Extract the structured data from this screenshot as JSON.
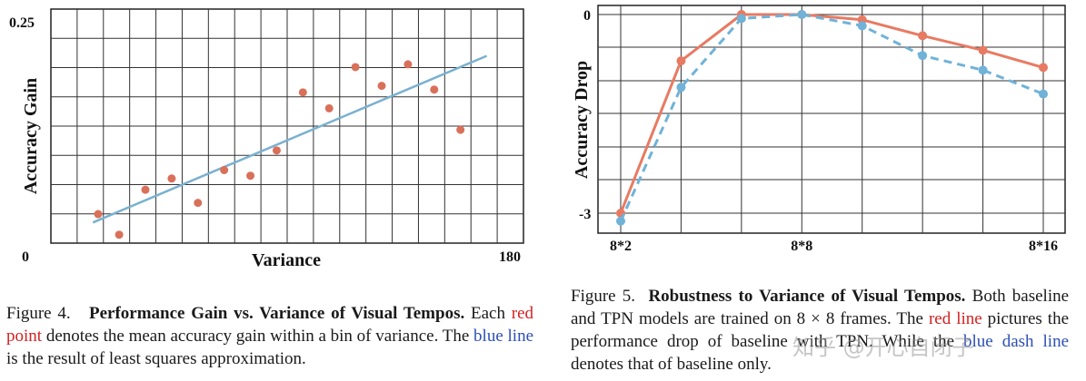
{
  "figure4": {
    "chart_data": {
      "type": "scatter",
      "title": "",
      "xlabel": "Variance",
      "ylabel": "Accuracy Gain",
      "xlim": [
        0,
        180
      ],
      "ylim": [
        0,
        0.25
      ],
      "x_tick_labels": [
        "0",
        "180"
      ],
      "y_tick_labels": [
        "0",
        "0.25"
      ],
      "grid": true,
      "series": [
        {
          "name": "red point",
          "type": "scatter",
          "color": "#d9705a",
          "x": [
            18,
            26,
            36,
            46,
            56,
            66,
            76,
            86,
            96,
            106,
            116,
            126,
            136,
            146,
            156
          ],
          "y": [
            0.031,
            0.009,
            0.057,
            0.069,
            0.043,
            0.078,
            0.072,
            0.099,
            0.161,
            0.144,
            0.188,
            0.168,
            0.191,
            0.164,
            0.121
          ]
        },
        {
          "name": "blue line",
          "type": "line",
          "color": "#7ab1d0",
          "x": [
            16,
            166
          ],
          "y": [
            0.022,
            0.2
          ]
        }
      ]
    },
    "caption": {
      "label": "Figure 4.",
      "title": "Performance Gain vs. Variance of Visual Tempos.",
      "text_1": "Each",
      "red_phrase": "red point",
      "text_2": "denotes the mean accuracy gain within a bin of variance. The",
      "blue_phrase": "blue line",
      "text_3": "is the result of least squares approximation."
    }
  },
  "figure5": {
    "chart_data": {
      "type": "line",
      "title": "",
      "xlabel": "",
      "ylabel": "Accuracy Drop",
      "x": [
        2,
        4,
        6,
        8,
        10,
        12,
        14,
        16
      ],
      "x_tick_labels": [
        "8*2",
        "8*8",
        "8*16"
      ],
      "y_tick_labels": [
        "0",
        "-3"
      ],
      "ylim": [
        -3.3,
        0.1
      ],
      "grid": true,
      "series": [
        {
          "name": "TPN",
          "style": "solid",
          "color": "#e87a62",
          "values": [
            -3.0,
            -0.7,
            0.0,
            0.0,
            -0.08,
            -0.32,
            -0.54,
            -0.8
          ]
        },
        {
          "name": "baseline",
          "style": "dashed",
          "color": "#70b2d8",
          "values": [
            -3.12,
            -1.1,
            -0.06,
            0.0,
            -0.17,
            -0.62,
            -0.84,
            -1.2
          ]
        }
      ]
    },
    "caption": {
      "label": "Figure 5.",
      "title": "Robustness to Variance of Visual Tempos.",
      "text_1": "Both baseline and TPN models are trained on 8 × 8 frames. The",
      "red_phrase": "red line",
      "text_2": "pictures the performance drop of baseline with TPN. While the",
      "blue_phrase": "blue dash line",
      "text_3": "denotes that of baseline only."
    }
  },
  "watermark": "知乎 @开心自闭子"
}
